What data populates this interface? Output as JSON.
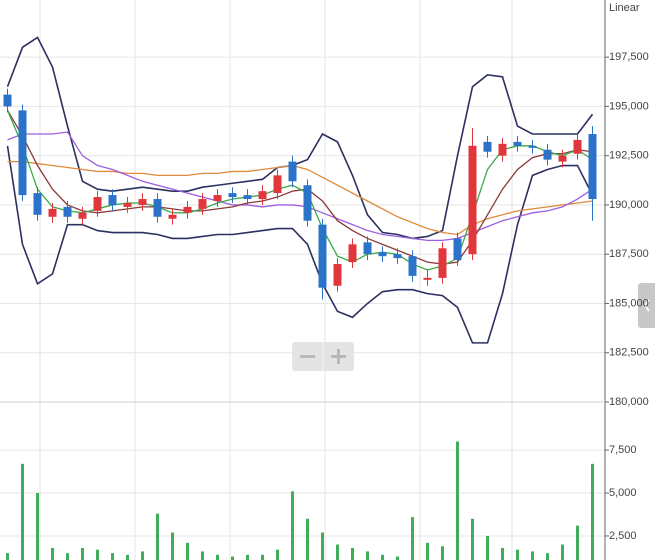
{
  "chart_data": {
    "type": "candlestick",
    "scale_label": "Linear",
    "up_color": "#e0363c",
    "down_color": "#2b73c8",
    "volume_color": "#3fae5a",
    "ylim": [
      180000,
      200400
    ],
    "yticks": [
      {
        "value": 180000,
        "label": "180,000"
      },
      {
        "value": 182500,
        "label": "182,500"
      },
      {
        "value": 185000,
        "label": "185,000"
      },
      {
        "value": 187500,
        "label": "187,500"
      },
      {
        "value": 190000,
        "label": "190,000"
      },
      {
        "value": 192500,
        "label": "192,500"
      },
      {
        "value": 195000,
        "label": "195,000"
      },
      {
        "value": 197500,
        "label": "197,500"
      }
    ],
    "volume_ylim": [
      1100,
      10300
    ],
    "volume_ticks": [
      {
        "value": 2500,
        "label": "2,500"
      },
      {
        "value": 5000,
        "label": "5,000"
      },
      {
        "value": 7500,
        "label": "7,500"
      }
    ],
    "open": [
      195600,
      194800,
      190600,
      189400,
      189900,
      189300,
      189700,
      190500,
      189900,
      190000,
      190300,
      189300,
      189600,
      189800,
      190200,
      190600,
      190500,
      190300,
      190600,
      192200,
      191000,
      189000,
      185900,
      187100,
      188100,
      187600,
      187500,
      187400,
      186200,
      186300,
      188300,
      187500,
      193200,
      192500,
      193200,
      193000,
      192800,
      192200,
      192600,
      193600
    ],
    "high": [
      195900,
      195100,
      190900,
      190100,
      190200,
      189900,
      190700,
      190800,
      190400,
      190600,
      190600,
      189800,
      190200,
      190600,
      190800,
      190900,
      190800,
      191000,
      191800,
      192500,
      191300,
      189300,
      187300,
      188300,
      188400,
      187900,
      187800,
      187700,
      186700,
      188100,
      188600,
      193900,
      193500,
      193400,
      193500,
      193300,
      193100,
      192800,
      193600,
      194000
    ],
    "low": [
      194700,
      190200,
      189200,
      189100,
      189100,
      189000,
      189400,
      189700,
      189600,
      189700,
      189100,
      189000,
      189300,
      189500,
      189900,
      190100,
      190000,
      190000,
      190300,
      190900,
      188900,
      185200,
      185600,
      186800,
      187200,
      187100,
      187000,
      186100,
      185900,
      186000,
      186900,
      187200,
      192400,
      192200,
      192700,
      192600,
      192000,
      191900,
      192300,
      189200
    ],
    "close": [
      195000,
      190500,
      189500,
      189800,
      189400,
      189600,
      190400,
      190000,
      190100,
      190300,
      189400,
      189500,
      189900,
      190300,
      190500,
      190400,
      190300,
      190700,
      191500,
      191200,
      189200,
      185800,
      187000,
      188000,
      187500,
      187400,
      187300,
      186400,
      186300,
      187800,
      187200,
      193000,
      192700,
      193100,
      193000,
      192900,
      192300,
      192500,
      193300,
      190300
    ],
    "volume": [
      1500,
      6700,
      5000,
      1800,
      1500,
      1800,
      1700,
      1500,
      1400,
      1600,
      3800,
      2700,
      2100,
      1600,
      1400,
      1300,
      1400,
      1400,
      1700,
      5100,
      3500,
      2700,
      2000,
      1800,
      1600,
      1400,
      1300,
      3600,
      2100,
      1900,
      8000,
      3500,
      2500,
      1800,
      1700,
      1600,
      1500,
      2000,
      3100,
      6700
    ],
    "lines": [
      {
        "color": "#2c3060",
        "values": [
          196000,
          198000,
          198500,
          197000,
          194000,
          191200,
          190800,
          190700,
          190800,
          190900,
          190800,
          190700,
          190700,
          190900,
          191000,
          191100,
          191200,
          191300,
          191900,
          192000,
          192300,
          193600,
          193200,
          191500,
          189500,
          188600,
          188500,
          188300,
          188400,
          188700,
          192500,
          196000,
          196600,
          196500,
          194000,
          193600,
          193600,
          193600,
          193600,
          194600
        ]
      },
      {
        "color": "#2c3060",
        "values": [
          193000,
          188000,
          186000,
          186500,
          189000,
          189000,
          188700,
          188600,
          188600,
          188600,
          188500,
          188300,
          188300,
          188400,
          188500,
          188500,
          188600,
          188700,
          188800,
          188800,
          188000,
          186000,
          184600,
          184300,
          185000,
          185600,
          185700,
          185700,
          185500,
          185400,
          184800,
          183000,
          183000,
          185500,
          189000,
          191500,
          191800,
          192000,
          192000,
          190500
        ]
      },
      {
        "color": "#e08a3c",
        "values": [
          192200,
          192200,
          192100,
          192000,
          191900,
          191800,
          191700,
          191700,
          191600,
          191600,
          191500,
          191500,
          191500,
          191600,
          191600,
          191700,
          191700,
          191800,
          191900,
          192000,
          191800,
          191400,
          191000,
          190600,
          190200,
          189800,
          189400,
          189100,
          188800,
          188600,
          188500,
          189000,
          189300,
          189500,
          189700,
          189800,
          189900,
          190000,
          190100,
          190200
        ]
      },
      {
        "color": "#9b5fe0",
        "values": [
          193300,
          193600,
          193600,
          193600,
          193700,
          192500,
          192000,
          191800,
          191500,
          191200,
          191000,
          190800,
          190600,
          190400,
          190200,
          190000,
          190000,
          189900,
          190000,
          190000,
          189900,
          189600,
          189300,
          189000,
          188700,
          188500,
          188400,
          188300,
          188200,
          188200,
          188300,
          188600,
          188900,
          189200,
          189400,
          189600,
          189700,
          189900,
          190300,
          190800
        ]
      },
      {
        "color": "#8a3a3a",
        "values": [
          194800,
          193500,
          192000,
          190800,
          190000,
          189700,
          189600,
          189700,
          189800,
          189900,
          189900,
          189800,
          189700,
          189700,
          189800,
          189900,
          190100,
          190200,
          190400,
          190700,
          190800,
          190200,
          189200,
          188700,
          188300,
          188000,
          187700,
          187400,
          187100,
          187000,
          187100,
          188200,
          189500,
          190800,
          191800,
          192400,
          192600,
          192600,
          192800,
          192700
        ]
      },
      {
        "color": "#3aaa4a",
        "values": [
          194800,
          193000,
          190800,
          189900,
          189700,
          189600,
          189800,
          190000,
          190100,
          190100,
          189900,
          189600,
          189600,
          189800,
          190100,
          190300,
          190400,
          190500,
          190800,
          191000,
          190600,
          188800,
          187400,
          187100,
          187500,
          187600,
          187500,
          187000,
          186700,
          186900,
          187300,
          189500,
          191800,
          192800,
          193000,
          193000,
          192700,
          192500,
          192800,
          192300
        ]
      }
    ]
  }
}
